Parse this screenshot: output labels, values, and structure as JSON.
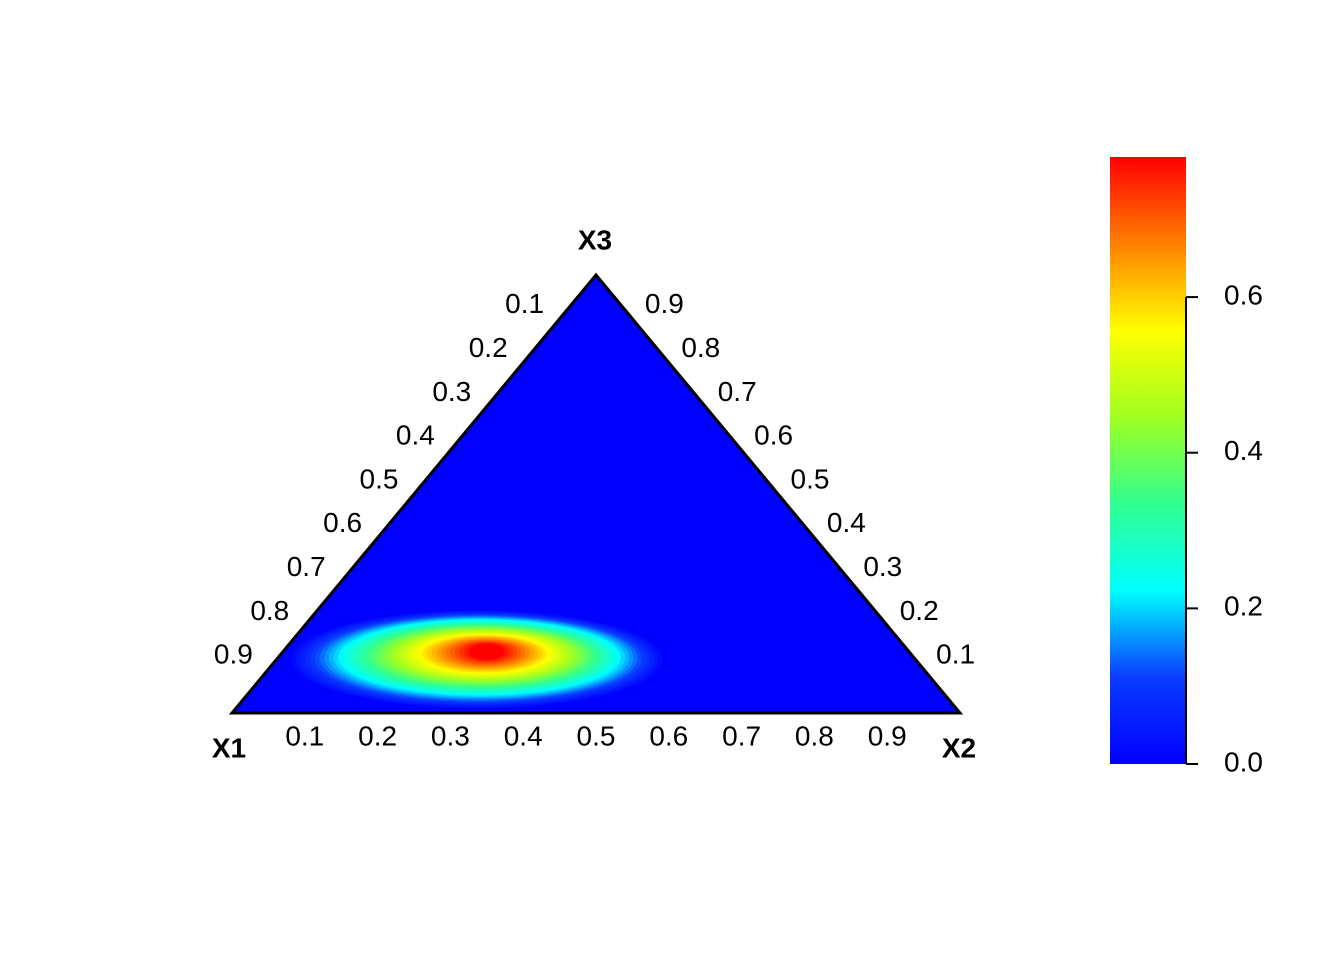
{
  "chart_data": {
    "type": "ternary",
    "vertex_labels": [
      "X1",
      "X2",
      "X3"
    ],
    "ticks": [
      0.1,
      0.2,
      0.3,
      0.4,
      0.5,
      0.6,
      0.7,
      0.8,
      0.9
    ],
    "density_peak": {
      "x1": 0.58,
      "x2": 0.28,
      "x3": 0.14,
      "value": 0.78
    },
    "colorbar": {
      "clim": [
        0,
        0.78
      ],
      "ticks": [
        {
          "value": 0,
          "label": "0.0"
        },
        0.2,
        0.4,
        0.6
      ],
      "colors": [
        "#0000ff",
        "#0a3cff",
        "#00ffff",
        "#30ff90",
        "#a0ff20",
        "#ffff00",
        "#ff8000",
        "#ff0000"
      ]
    }
  }
}
